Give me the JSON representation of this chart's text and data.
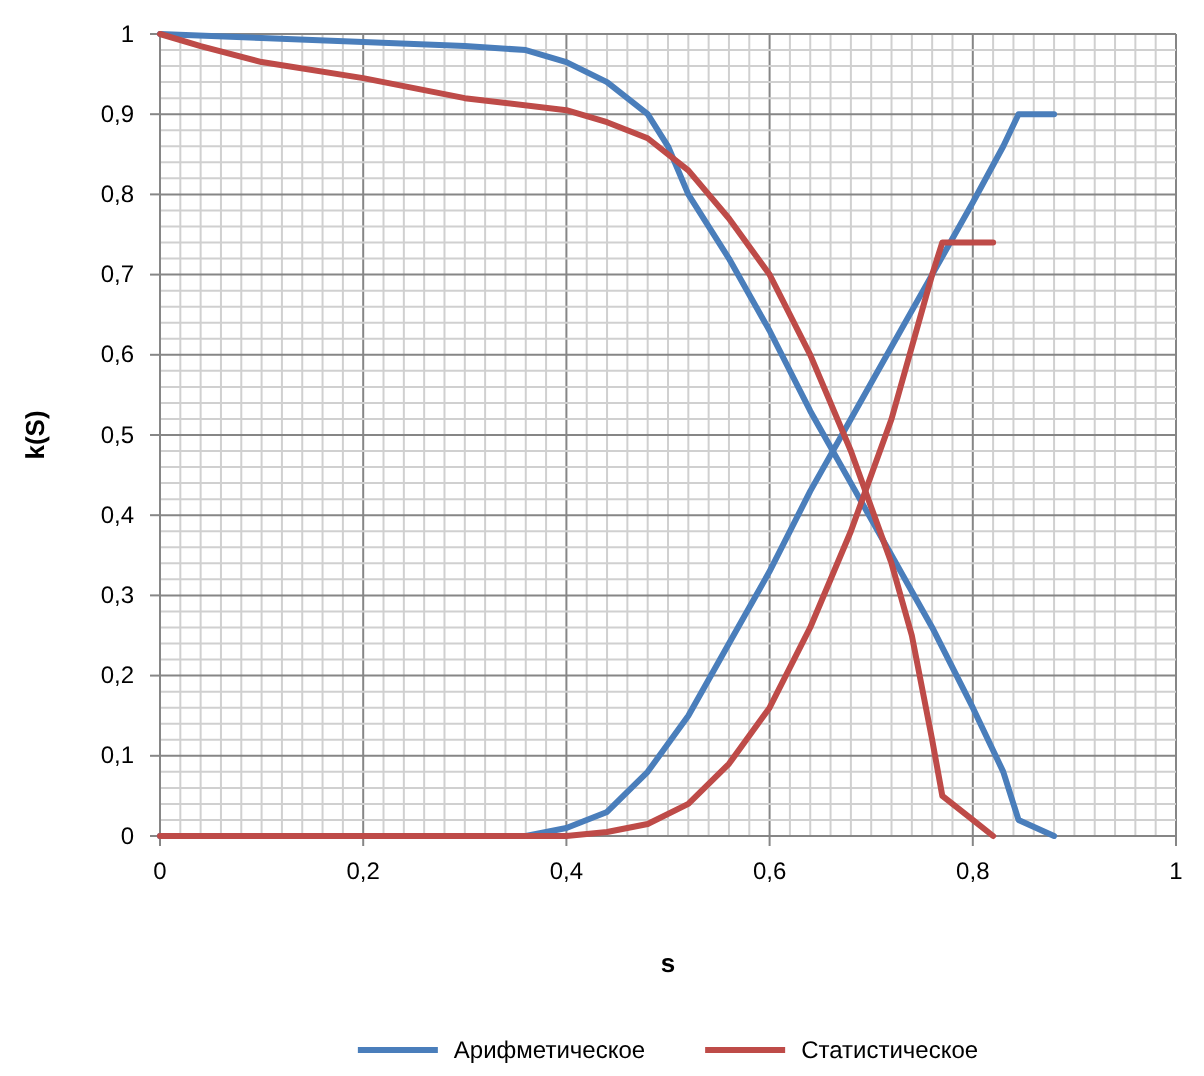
{
  "chart_data": {
    "type": "line",
    "xlabel": "s",
    "ylabel": "k(S)",
    "xlim": [
      0,
      1
    ],
    "ylim": [
      0,
      1
    ],
    "xticks": [
      {
        "value": 0,
        "label": "0"
      },
      {
        "value": 0.02,
        "label": null
      },
      {
        "value": 0.04,
        "label": null
      },
      {
        "value": 0.06,
        "label": null
      },
      {
        "value": 0.08,
        "label": null
      },
      {
        "value": 0.1,
        "label": null
      },
      {
        "value": 0.12,
        "label": null
      },
      {
        "value": 0.14,
        "label": null
      },
      {
        "value": 0.16,
        "label": null
      },
      {
        "value": 0.18,
        "label": null
      },
      {
        "value": 0.2,
        "label": "0,2"
      },
      {
        "value": 0.22,
        "label": null
      },
      {
        "value": 0.24,
        "label": null
      },
      {
        "value": 0.26,
        "label": null
      },
      {
        "value": 0.28,
        "label": null
      },
      {
        "value": 0.3,
        "label": null
      },
      {
        "value": 0.32,
        "label": null
      },
      {
        "value": 0.34,
        "label": null
      },
      {
        "value": 0.36,
        "label": null
      },
      {
        "value": 0.38,
        "label": null
      },
      {
        "value": 0.4,
        "label": "0,4"
      },
      {
        "value": 0.42,
        "label": null
      },
      {
        "value": 0.44,
        "label": null
      },
      {
        "value": 0.46,
        "label": null
      },
      {
        "value": 0.48,
        "label": null
      },
      {
        "value": 0.5,
        "label": null
      },
      {
        "value": 0.52,
        "label": null
      },
      {
        "value": 0.54,
        "label": null
      },
      {
        "value": 0.56,
        "label": null
      },
      {
        "value": 0.58,
        "label": null
      },
      {
        "value": 0.6,
        "label": "0,6"
      },
      {
        "value": 0.62,
        "label": null
      },
      {
        "value": 0.64,
        "label": null
      },
      {
        "value": 0.66,
        "label": null
      },
      {
        "value": 0.68,
        "label": null
      },
      {
        "value": 0.7,
        "label": null
      },
      {
        "value": 0.72,
        "label": null
      },
      {
        "value": 0.74,
        "label": null
      },
      {
        "value": 0.76,
        "label": null
      },
      {
        "value": 0.78,
        "label": null
      },
      {
        "value": 0.8,
        "label": "0,8"
      },
      {
        "value": 0.82,
        "label": null
      },
      {
        "value": 0.84,
        "label": null
      },
      {
        "value": 0.86,
        "label": null
      },
      {
        "value": 0.88,
        "label": null
      },
      {
        "value": 0.9,
        "label": null
      },
      {
        "value": 0.92,
        "label": null
      },
      {
        "value": 0.94,
        "label": null
      },
      {
        "value": 0.96,
        "label": null
      },
      {
        "value": 0.98,
        "label": null
      },
      {
        "value": 1,
        "label": "1"
      }
    ],
    "yticks": [
      {
        "value": 0,
        "label": "0"
      },
      {
        "value": 0.02,
        "label": null
      },
      {
        "value": 0.04,
        "label": null
      },
      {
        "value": 0.06,
        "label": null
      },
      {
        "value": 0.08,
        "label": null
      },
      {
        "value": 0.1,
        "label": "0,1"
      },
      {
        "value": 0.12,
        "label": null
      },
      {
        "value": 0.14,
        "label": null
      },
      {
        "value": 0.16,
        "label": null
      },
      {
        "value": 0.18,
        "label": null
      },
      {
        "value": 0.2,
        "label": "0,2"
      },
      {
        "value": 0.22,
        "label": null
      },
      {
        "value": 0.24,
        "label": null
      },
      {
        "value": 0.26,
        "label": null
      },
      {
        "value": 0.28,
        "label": null
      },
      {
        "value": 0.3,
        "label": "0,3"
      },
      {
        "value": 0.32,
        "label": null
      },
      {
        "value": 0.34,
        "label": null
      },
      {
        "value": 0.36,
        "label": null
      },
      {
        "value": 0.38,
        "label": null
      },
      {
        "value": 0.4,
        "label": "0,4"
      },
      {
        "value": 0.42,
        "label": null
      },
      {
        "value": 0.44,
        "label": null
      },
      {
        "value": 0.46,
        "label": null
      },
      {
        "value": 0.48,
        "label": null
      },
      {
        "value": 0.5,
        "label": "0,5"
      },
      {
        "value": 0.52,
        "label": null
      },
      {
        "value": 0.54,
        "label": null
      },
      {
        "value": 0.56,
        "label": null
      },
      {
        "value": 0.58,
        "label": null
      },
      {
        "value": 0.6,
        "label": "0,6"
      },
      {
        "value": 0.62,
        "label": null
      },
      {
        "value": 0.64,
        "label": null
      },
      {
        "value": 0.66,
        "label": null
      },
      {
        "value": 0.68,
        "label": null
      },
      {
        "value": 0.7,
        "label": "0,7"
      },
      {
        "value": 0.72,
        "label": null
      },
      {
        "value": 0.74,
        "label": null
      },
      {
        "value": 0.76,
        "label": null
      },
      {
        "value": 0.78,
        "label": null
      },
      {
        "value": 0.8,
        "label": "0,8"
      },
      {
        "value": 0.82,
        "label": null
      },
      {
        "value": 0.84,
        "label": null
      },
      {
        "value": 0.86,
        "label": null
      },
      {
        "value": 0.88,
        "label": null
      },
      {
        "value": 0.9,
        "label": "0,9"
      },
      {
        "value": 0.92,
        "label": null
      },
      {
        "value": 0.94,
        "label": null
      },
      {
        "value": 0.96,
        "label": null
      },
      {
        "value": 0.98,
        "label": null
      },
      {
        "value": 1,
        "label": "1"
      }
    ],
    "grid": true,
    "legend": "bottom",
    "marker": "none",
    "line_style": "solid",
    "series": [
      {
        "name": "Арифметическое",
        "color": "#4a7ebb",
        "x": [
          0,
          0.1,
          0.2,
          0.3,
          0.36,
          0.4,
          0.44,
          0.48,
          0.5,
          0.52,
          0.56,
          0.6,
          0.64,
          0.68,
          0.72,
          0.76,
          0.8,
          0.83,
          0.845,
          0.88
        ],
        "values": [
          1,
          0.995,
          0.99,
          0.985,
          0.98,
          0.965,
          0.94,
          0.9,
          0.86,
          0.8,
          0.72,
          0.63,
          0.53,
          0.44,
          0.35,
          0.26,
          0.16,
          0.08,
          0.02,
          0
        ]
      },
      {
        "color": "#4a7ebb",
        "x": [
          0,
          0.36,
          0.4,
          0.44,
          0.48,
          0.52,
          0.56,
          0.6,
          0.64,
          0.68,
          0.72,
          0.76,
          0.8,
          0.83,
          0.845,
          0.88
        ],
        "values": [
          0,
          0,
          0.01,
          0.03,
          0.08,
          0.15,
          0.24,
          0.33,
          0.43,
          0.52,
          0.61,
          0.7,
          0.79,
          0.86,
          0.9,
          0.9
        ]
      },
      {
        "name": "Статистическое",
        "color": "#be4b48",
        "x": [
          0,
          0.04,
          0.1,
          0.2,
          0.3,
          0.4,
          0.44,
          0.48,
          0.52,
          0.56,
          0.6,
          0.64,
          0.68,
          0.72,
          0.74,
          0.76,
          0.77,
          0.8,
          0.82
        ],
        "values": [
          1,
          0.985,
          0.965,
          0.945,
          0.92,
          0.905,
          0.89,
          0.87,
          0.83,
          0.77,
          0.7,
          0.6,
          0.48,
          0.34,
          0.25,
          0.12,
          0.05,
          0.02,
          0
        ]
      },
      {
        "color": "#be4b48",
        "x": [
          0,
          0.4,
          0.44,
          0.48,
          0.52,
          0.56,
          0.6,
          0.64,
          0.68,
          0.72,
          0.76,
          0.77,
          0.82
        ],
        "values": [
          0,
          0,
          0.005,
          0.015,
          0.04,
          0.09,
          0.16,
          0.26,
          0.38,
          0.52,
          0.7,
          0.74,
          0.74
        ]
      }
    ]
  }
}
